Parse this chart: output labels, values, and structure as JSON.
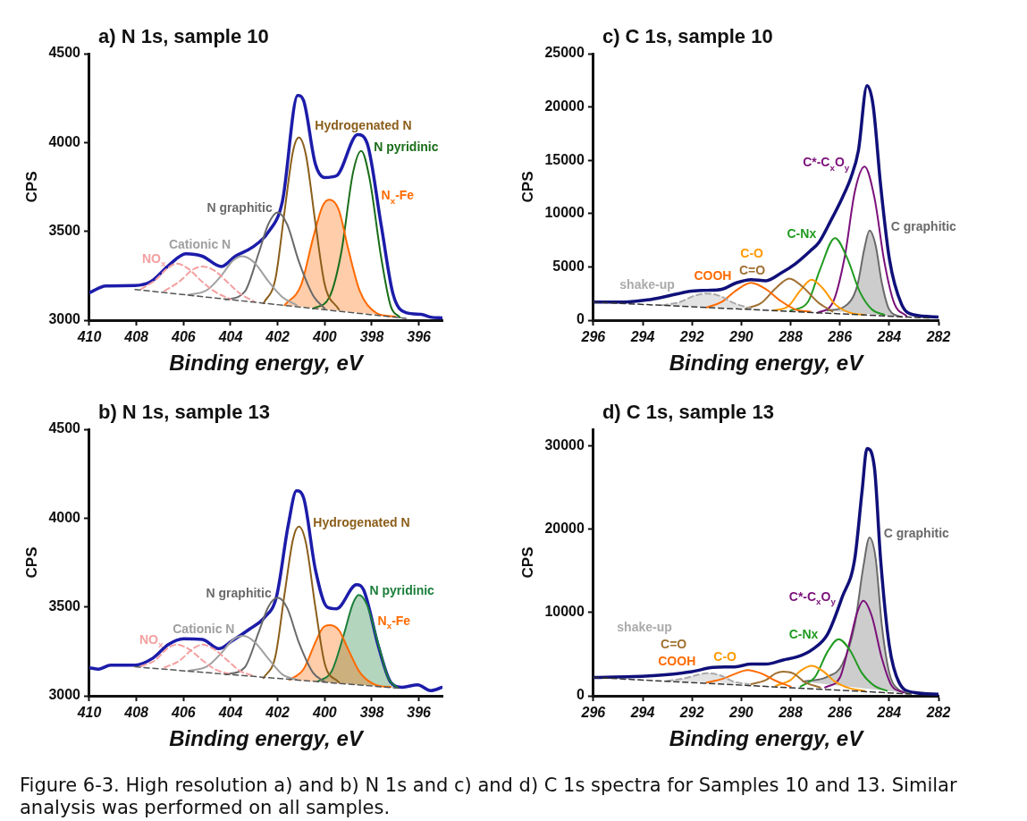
{
  "chart_data": [
    {
      "type": "line",
      "title": "a) N 1s, sample 10",
      "xlabel": "Binding energy, eV",
      "ylabel": "CPS",
      "xlim": [
        410,
        395
      ],
      "xticks": [
        410,
        408,
        406,
        404,
        402,
        400,
        398,
        396
      ],
      "ylim": [
        3000,
        4500
      ],
      "yticks": [
        3000,
        3500,
        4000,
        4500
      ],
      "legend": false,
      "grid": false,
      "annotations": [
        "Figure 6-3. High resolution a) and b) N 1s and c) and d) C 1s spectra for Samples 10 and 13. Similar analysis was performed on all samples."
      ],
      "series": [
        {
          "type": "line",
          "color": "#555555",
          "line_style": "dashed",
          "x": [
            408.06,
            396.55
          ],
          "values": [
            3173,
            3010
          ]
        },
        {
          "type": "line",
          "name": "NO$_{x}$",
          "color": "#f4a0a0",
          "line_style": "dashed",
          "x": [
            407.8,
            407.2,
            406.7,
            406.3,
            405.8,
            405.2,
            404.6,
            404.0
          ],
          "values": [
            3175,
            3225,
            3290,
            3318,
            3290,
            3215,
            3155,
            3118
          ]
        },
        {
          "type": "line",
          "color": "#f4a0a0",
          "line_style": "dashed",
          "x": [
            406.8,
            406.2,
            405.6,
            405.2,
            404.7,
            404.1,
            403.6,
            403.0
          ],
          "values": [
            3165,
            3215,
            3285,
            3302,
            3280,
            3210,
            3150,
            3105
          ]
        },
        {
          "type": "line",
          "name": "Cationic N",
          "color": "#a0a0a0",
          "x": [
            405.8,
            405.0,
            404.4,
            403.9,
            403.5,
            403.0,
            402.4,
            401.8,
            401.2
          ],
          "values": [
            3142,
            3170,
            3250,
            3335,
            3360,
            3325,
            3220,
            3130,
            3085
          ]
        },
        {
          "type": "line",
          "name": "N graphitic",
          "color": "#6a6a6a",
          "x": [
            404.2,
            403.4,
            402.8,
            402.4,
            402.0,
            401.6,
            401.1,
            400.5,
            400.0
          ],
          "values": [
            3115,
            3160,
            3380,
            3540,
            3607,
            3540,
            3330,
            3140,
            3065
          ]
        },
        {
          "type": "line",
          "name": "Hydrogenated N",
          "color": "#8b5e1a",
          "x": [
            402.6,
            402.1,
            401.7,
            401.35,
            401.1,
            400.8,
            400.4,
            400.0,
            399.4
          ],
          "values": [
            3095,
            3230,
            3620,
            3950,
            4028,
            3930,
            3550,
            3200,
            3060
          ]
        },
        {
          "type": "area",
          "name": "N$_{x}$-Fe",
          "color": "#ff6a00",
          "x": [
            401.7,
            401.0,
            400.5,
            400.1,
            399.8,
            399.4,
            399.0,
            398.5,
            397.8,
            397.0
          ],
          "values": [
            3085,
            3200,
            3460,
            3640,
            3678,
            3620,
            3400,
            3160,
            3040,
            3020
          ]
        },
        {
          "type": "line",
          "name": "N pyridinic",
          "color": "#1a6e1a",
          "x": [
            400.5,
            399.8,
            399.3,
            398.8,
            398.45,
            398.1,
            397.6,
            397.2,
            396.8
          ],
          "values": [
            3065,
            3130,
            3380,
            3830,
            3953,
            3800,
            3350,
            3080,
            3015
          ]
        },
        {
          "type": "line",
          "color": "#1c1caa",
          "x": [
            410,
            409.3,
            408.06,
            407.4,
            406.6,
            405.9,
            405.2,
            404.4,
            403.8,
            403.1,
            402.4,
            401.8,
            401.15,
            400.9,
            400.4,
            400.0,
            399.5,
            398.6,
            398.2,
            397.6,
            397.1,
            396.55,
            395.9,
            395.5,
            395.0
          ],
          "values": [
            3154,
            3193,
            3195,
            3216,
            3312,
            3374,
            3360,
            3302,
            3360,
            3408,
            3495,
            3668,
            4265,
            4236,
            3880,
            3803,
            3813,
            4044,
            3996,
            3533,
            3148,
            3042,
            3033,
            3017,
            3013
          ]
        }
      ]
    },
    {
      "type": "line",
      "title": "c) C 1s, sample 10",
      "xlabel": "Binding energy, eV",
      "ylabel": "CPS",
      "xlim": [
        296,
        282
      ],
      "xticks": [
        296,
        294,
        292,
        290,
        288,
        286,
        284,
        282
      ],
      "ylim": [
        0,
        25000
      ],
      "yticks": [
        0,
        5000,
        10000,
        15000,
        20000,
        25000
      ],
      "legend": false,
      "grid": false,
      "series": [
        {
          "type": "line",
          "color": "#333333",
          "line_style": "dashed",
          "x": [
            296,
            282.4
          ],
          "values": [
            1700,
            200
          ]
        },
        {
          "type": "area",
          "name": "shake-up",
          "color": "#aaaaaa",
          "line_style": "dashed",
          "x": [
            293.2,
            292.5,
            291.9,
            291.4,
            290.9,
            290.3,
            289.6
          ],
          "values": [
            1400,
            1700,
            2300,
            2500,
            2300,
            1600,
            1100
          ]
        },
        {
          "type": "line",
          "name": "COOH",
          "color": "#ff6a00",
          "x": [
            291.4,
            290.8,
            290.2,
            289.6,
            289.0,
            288.4,
            287.8,
            287.2
          ],
          "values": [
            1200,
            1700,
            2800,
            3500,
            2900,
            1800,
            1000,
            800
          ]
        },
        {
          "type": "line",
          "name": "C=O",
          "color": "#a07030",
          "x": [
            289.8,
            289.2,
            288.6,
            288.05,
            287.5,
            286.9,
            286.3
          ],
          "values": [
            1100,
            1600,
            3000,
            3900,
            3100,
            1700,
            800
          ]
        },
        {
          "type": "line",
          "name": "C-O",
          "color": "#ff9900",
          "x": [
            288.7,
            288.1,
            287.6,
            287.15,
            286.7,
            286.2,
            285.6,
            285.0
          ],
          "values": [
            900,
            1300,
            2800,
            3800,
            3000,
            1500,
            700,
            500
          ]
        },
        {
          "type": "line",
          "name": "C-Nx",
          "color": "#1f9a1f",
          "x": [
            288.0,
            287.3,
            286.8,
            286.2,
            285.7,
            285.2,
            284.7,
            284.2
          ],
          "values": [
            900,
            1700,
            4800,
            7700,
            5800,
            2700,
            1000,
            500
          ]
        },
        {
          "type": "line",
          "name": "C*-C$_{x}$O$_{y}$",
          "color": "#7a107a",
          "x": [
            286.9,
            286.3,
            285.8,
            285.4,
            285.0,
            284.6,
            284.2,
            283.8,
            283.3
          ],
          "values": [
            700,
            1600,
            6000,
            12000,
            14400,
            11500,
            5500,
            1600,
            400
          ]
        },
        {
          "type": "area",
          "name": "C graphitic",
          "color": "#6a6a6a",
          "x": [
            286.5,
            285.8,
            285.3,
            285.0,
            284.8,
            284.55,
            284.3,
            284.0,
            283.5
          ],
          "values": [
            900,
            1300,
            3200,
            6800,
            8400,
            7000,
            3500,
            1000,
            300
          ]
        },
        {
          "type": "line",
          "color": "#10107a",
          "x": [
            296,
            294.75,
            293.8,
            293.1,
            292.1,
            291.4,
            290.8,
            290.2,
            289.6,
            289.0,
            288.4,
            287.8,
            287.2,
            286.85,
            286.4,
            285.9,
            285.55,
            285.25,
            284.9,
            284.65,
            284.35,
            283.99,
            283.5,
            283.0,
            282.0
          ],
          "values": [
            1700,
            1700,
            1900,
            2200,
            2700,
            2800,
            2900,
            3500,
            3800,
            3700,
            4400,
            5300,
            6500,
            7300,
            9200,
            11500,
            13400,
            15900,
            22000,
            20100,
            12700,
            5700,
            1500,
            500,
            300
          ]
        }
      ]
    },
    {
      "type": "line",
      "title": "b) N 1s, sample 13",
      "xlabel": "Binding energy, eV",
      "ylabel": "CPS",
      "xlim": [
        410,
        395
      ],
      "xticks": [
        410,
        408,
        406,
        404,
        402,
        400,
        398,
        396
      ],
      "ylim": [
        3000,
        4500
      ],
      "yticks": [
        3000,
        3500,
        4000,
        4500
      ],
      "legend": false,
      "grid": false,
      "series": [
        {
          "type": "line",
          "color": "#555555",
          "line_style": "dashed",
          "x": [
            408.06,
            396.8
          ],
          "values": [
            3163,
            3042
          ]
        },
        {
          "type": "line",
          "name": "NO$_{x}$",
          "color": "#f4a0a0",
          "line_style": "dashed",
          "x": [
            407.8,
            407.2,
            406.7,
            406.3,
            405.8,
            405.2,
            404.6,
            404.0
          ],
          "values": [
            3166,
            3200,
            3265,
            3288,
            3265,
            3200,
            3145,
            3122
          ]
        },
        {
          "type": "line",
          "color": "#f4a0a0",
          "line_style": "dashed",
          "x": [
            406.8,
            406.2,
            405.6,
            405.2,
            404.7,
            404.1,
            403.6,
            403.0
          ],
          "values": [
            3160,
            3195,
            3265,
            3288,
            3262,
            3195,
            3140,
            3112
          ]
        },
        {
          "type": "line",
          "name": "Cationic N",
          "color": "#a0a0a0",
          "x": [
            405.8,
            405.0,
            404.4,
            403.9,
            403.45,
            403.0,
            402.4,
            401.8,
            401.2
          ],
          "values": [
            3140,
            3165,
            3240,
            3315,
            3337,
            3305,
            3210,
            3120,
            3090
          ]
        },
        {
          "type": "line",
          "name": "N graphitic",
          "color": "#6a6a6a",
          "x": [
            404.2,
            403.4,
            402.8,
            402.4,
            402.0,
            401.6,
            401.1,
            400.5,
            400.0
          ],
          "values": [
            3120,
            3160,
            3360,
            3500,
            3552,
            3495,
            3300,
            3130,
            3078
          ]
        },
        {
          "type": "line",
          "name": "Hydrogenated N",
          "color": "#8b5e1a",
          "x": [
            402.6,
            402.1,
            401.7,
            401.35,
            401.1,
            400.8,
            400.4,
            400.0,
            399.4
          ],
          "values": [
            3100,
            3220,
            3580,
            3880,
            3952,
            3860,
            3500,
            3180,
            3075
          ]
        },
        {
          "type": "area",
          "name": "N$_{x}$-Fe",
          "color": "#ff6a00",
          "x": [
            401.5,
            400.9,
            400.4,
            400.1,
            399.8,
            399.4,
            399.0,
            398.5,
            397.8,
            397.2
          ],
          "values": [
            3090,
            3150,
            3300,
            3380,
            3398,
            3370,
            3260,
            3130,
            3060,
            3050
          ]
        },
        {
          "type": "area",
          "name": "N pyridinic",
          "color": "#1a7e3a",
          "x": [
            400.3,
            399.7,
            399.2,
            398.8,
            398.55,
            398.2,
            397.7,
            397.3,
            396.9
          ],
          "values": [
            3080,
            3140,
            3340,
            3520,
            3567,
            3510,
            3280,
            3100,
            3045
          ]
        },
        {
          "type": "line",
          "color": "#1c1caa",
          "x": [
            410,
            409.6,
            409.1,
            408.06,
            407.3,
            406.65,
            406.0,
            405.2,
            404.5,
            403.95,
            403.2,
            402.55,
            402.05,
            401.55,
            401.2,
            400.9,
            400.4,
            399.9,
            399.5,
            398.65,
            398.35,
            397.7,
            397.2,
            396.7,
            396.05,
            395.5,
            395.0
          ],
          "values": [
            3158,
            3150,
            3173,
            3173,
            3212,
            3288,
            3321,
            3317,
            3265,
            3308,
            3375,
            3442,
            3558,
            3962,
            4154,
            4115,
            3712,
            3500,
            3490,
            3625,
            3596,
            3269,
            3077,
            3048,
            3062,
            3029,
            3048
          ]
        }
      ]
    },
    {
      "type": "line",
      "title": "d) C 1s, sample 13",
      "xlabel": "Binding energy, eV",
      "ylabel": "CPS",
      "xlim": [
        296,
        282
      ],
      "xticks": [
        296,
        294,
        292,
        290,
        288,
        286,
        284,
        282
      ],
      "ylim": [
        0,
        32000
      ],
      "yticks": [
        0,
        10000,
        20000,
        30000
      ],
      "legend": false,
      "grid": false,
      "series": [
        {
          "type": "line",
          "color": "#333333",
          "line_style": "dashed",
          "x": [
            296,
            283.0
          ],
          "values": [
            2200,
            200
          ]
        },
        {
          "type": "area",
          "name": "shake-up",
          "color": "#aaaaaa",
          "line_style": "dashed",
          "x": [
            293.0,
            292.3,
            291.8,
            291.4,
            290.9,
            290.3,
            289.7
          ],
          "values": [
            1800,
            2100,
            2500,
            2700,
            2500,
            1700,
            1400
          ]
        },
        {
          "type": "line",
          "name": "COOH",
          "color": "#ff6a00",
          "x": [
            291.4,
            290.8,
            290.2,
            289.75,
            289.2,
            288.6,
            288.0
          ],
          "values": [
            1600,
            2000,
            2700,
            3100,
            2700,
            1800,
            1100
          ]
        },
        {
          "type": "line",
          "name": "C=O",
          "color": "#a07030",
          "x": [
            289.6,
            289.0,
            288.6,
            288.3,
            287.9,
            287.4,
            286.8
          ],
          "values": [
            1400,
            1900,
            2700,
            2900,
            2700,
            1600,
            1000
          ]
        },
        {
          "type": "line",
          "name": "C-O",
          "color": "#ff9900",
          "x": [
            288.6,
            288.0,
            287.6,
            287.15,
            286.7,
            286.2,
            285.6,
            285.0
          ],
          "values": [
            1200,
            1900,
            3000,
            3600,
            3000,
            1700,
            900,
            600
          ]
        },
        {
          "type": "line",
          "name": "C-Nx",
          "color": "#1f9a1f",
          "x": [
            287.6,
            287.0,
            286.5,
            286.05,
            285.6,
            285.1,
            284.6,
            284.1
          ],
          "values": [
            1100,
            2300,
            5300,
            6800,
            5500,
            2700,
            1200,
            600
          ]
        },
        {
          "type": "line",
          "name": "C*-C$_{x}$O$_{y}$",
          "color": "#7a107a",
          "x": [
            286.6,
            286.0,
            285.6,
            285.3,
            285.05,
            284.7,
            284.3,
            283.9,
            283.4
          ],
          "values": [
            1000,
            2200,
            6500,
            10000,
            11400,
            9500,
            4500,
            1200,
            400
          ]
        },
        {
          "type": "area",
          "name": "C graphitic",
          "color": "#6a6a6a",
          "x": [
            287.5,
            286.5,
            285.9,
            285.4,
            285.05,
            284.8,
            284.55,
            284.3,
            284.0,
            283.6,
            283.2
          ],
          "values": [
            1700,
            2300,
            3800,
            8500,
            15500,
            19000,
            16500,
            8500,
            2800,
            700,
            300
          ]
        },
        {
          "type": "line",
          "color": "#10107a",
          "x": [
            296,
            294.4,
            293.2,
            292.0,
            291.15,
            290.2,
            289.6,
            289.0,
            288.3,
            287.7,
            287.1,
            286.5,
            285.9,
            285.4,
            285.1,
            284.9,
            284.6,
            284.35,
            284.0,
            283.6,
            283.0,
            282.0
          ],
          "values": [
            2200,
            2300,
            2500,
            2900,
            3400,
            3500,
            3800,
            3800,
            4300,
            4700,
            5600,
            7400,
            11900,
            16400,
            24600,
            29700,
            27400,
            16400,
            6100,
            1600,
            400,
            200
          ]
        }
      ]
    }
  ]
}
